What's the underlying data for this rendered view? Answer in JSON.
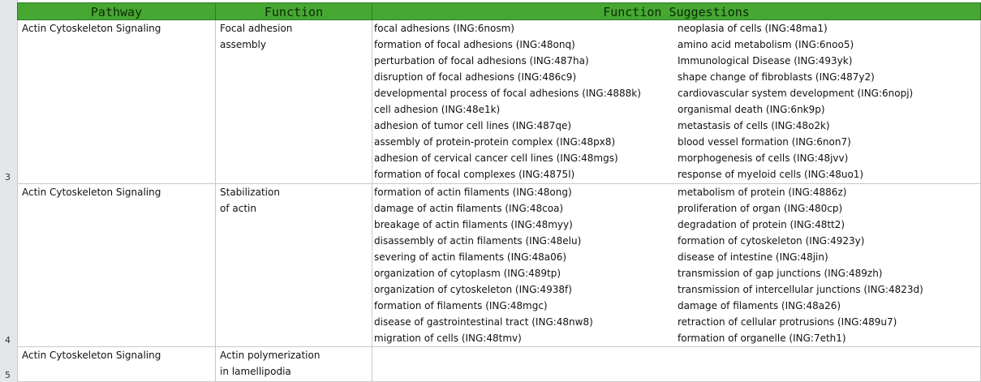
{
  "headers": {
    "pathway": "Pathway",
    "function": "Function",
    "suggestions": "Function Suggestions"
  },
  "rows": [
    {
      "row_number": "3",
      "pathway": "Actin Cytoskeleton Signaling",
      "function_lines": [
        "Focal adhesion",
        "assembly"
      ],
      "suggestions_left": [
        "focal adhesions (ING:6nosm)",
        "formation of focal adhesions (ING:48onq)",
        "perturbation of focal adhesions (ING:487ha)",
        "disruption of focal adhesions (ING:486c9)",
        "developmental process of focal adhesions (ING:4888k)",
        "cell adhesion (ING:48e1k)",
        "adhesion of tumor cell lines (ING:487qe)",
        "assembly of protein-protein complex (ING:48px8)",
        "adhesion of cervical cancer cell lines (ING:48mgs)",
        "formation of focal complexes (ING:4875l)"
      ],
      "suggestions_right": [
        "neoplasia of cells (ING:48ma1)",
        "amino acid metabolism (ING:6noo5)",
        "Immunological Disease (ING:493yk)",
        "shape change of fibroblasts (ING:487y2)",
        "cardiovascular system development (ING:6nopj)",
        "organismal death (ING:6nk9p)",
        "metastasis of cells (ING:48o2k)",
        "blood vessel formation (ING:6non7)",
        "morphogenesis of cells (ING:48jvv)",
        "response of myeloid cells (ING:48uo1)"
      ]
    },
    {
      "row_number": "4",
      "pathway": "Actin Cytoskeleton Signaling",
      "function_lines": [
        "Stabilization",
        "of actin"
      ],
      "suggestions_left": [
        "formation of actin filaments (ING:48ong)",
        "damage of actin filaments (ING:48coa)",
        "breakage of actin filaments (ING:48myy)",
        "disassembly of actin filaments (ING:48elu)",
        "severing of actin filaments (ING:48a06)",
        "organization of cytoplasm (ING:489tp)",
        "organization of cytoskeleton (ING:4938f)",
        "formation of filaments (ING:48mgc)",
        "disease of gastrointestinal tract (ING:48nw8)",
        "migration of cells (ING:48tmv)"
      ],
      "suggestions_right": [
        "metabolism of protein (ING:4886z)",
        "proliferation of organ (ING:480cp)",
        "degradation of protein (ING:48tt2)",
        "formation of cytoskeleton (ING:4923y)",
        "disease of intestine (ING:48jin)",
        "transmission of gap junctions (ING:489zh)",
        "transmission of intercellular junctions (ING:4823d)",
        "damage of filaments (ING:48a26)",
        "retraction of cellular protrusions (ING:489u7)",
        "formation of organelle (ING:7eth1)"
      ]
    },
    {
      "row_number": "5",
      "pathway": "Actin Cytoskeleton Signaling",
      "function_lines": [
        "Actin polymerization",
        "in lamellipodia"
      ],
      "suggestions_left": [],
      "suggestions_right": []
    }
  ],
  "colors": {
    "header_bg": "#46a832",
    "row_header_bg": "#e4e6ea",
    "gridline": "#c9c9c9"
  }
}
